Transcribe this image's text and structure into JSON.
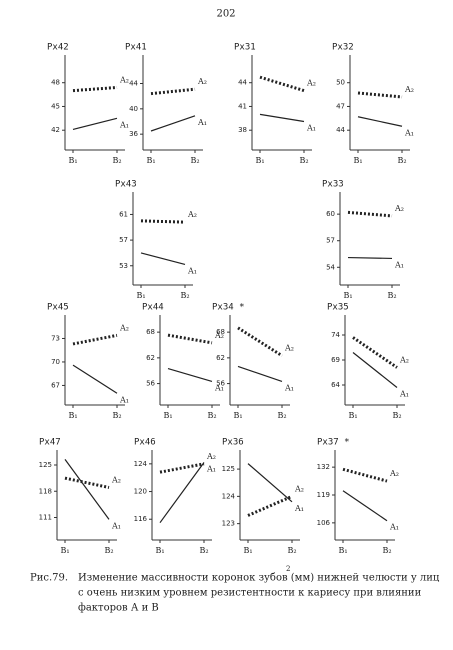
{
  "page_number": "202",
  "caption": {
    "label": "Рис.79.",
    "mark": "2",
    "lines": [
      "Изменение массивности коронок зубов (мм) нижней челюсти  у лиц",
      "с очень низким уровнем резистентности к кариесу при влиянии",
      "факторов А и В"
    ]
  },
  "chart_data": [
    {
      "type": "line",
      "title": "Px42",
      "categories": [
        "B₁",
        "B₂"
      ],
      "ylim": [
        39.5,
        51.5
      ],
      "yticks": [
        42,
        45,
        48
      ],
      "series": [
        {
          "name": "A₂",
          "color": "#222",
          "style": "dotted",
          "values": [
            47.0,
            47.4
          ]
        },
        {
          "name": "A₁",
          "color": "#222",
          "style": "solid",
          "values": [
            42.1,
            43.5
          ]
        }
      ]
    },
    {
      "type": "line",
      "title": "Px41",
      "categories": [
        "B₁",
        "B₂"
      ],
      "ylim": [
        33.5,
        48.5
      ],
      "yticks": [
        36,
        40,
        44
      ],
      "series": [
        {
          "name": "A₂",
          "color": "#222",
          "style": "dotted",
          "values": [
            42.4,
            43.1
          ]
        },
        {
          "name": "A₁",
          "color": "#222",
          "style": "solid",
          "values": [
            36.5,
            38.9
          ]
        }
      ]
    },
    {
      "type": "line",
      "title": "Px31",
      "categories": [
        "B₁",
        "B₂"
      ],
      "ylim": [
        35.5,
        47.5
      ],
      "yticks": [
        38,
        41,
        44
      ],
      "series": [
        {
          "name": "A₂",
          "color": "#222",
          "style": "dotted",
          "values": [
            44.7,
            43.0
          ]
        },
        {
          "name": "A₁",
          "color": "#222",
          "style": "solid",
          "values": [
            40.0,
            39.1
          ]
        }
      ]
    },
    {
      "type": "line",
      "title": "Px32",
      "categories": [
        "B₁",
        "B₂"
      ],
      "ylim": [
        41.5,
        53.5
      ],
      "yticks": [
        44,
        47,
        50
      ],
      "series": [
        {
          "name": "A₂",
          "color": "#222",
          "style": "dotted",
          "values": [
            48.7,
            48.2
          ]
        },
        {
          "name": "A₁",
          "color": "#222",
          "style": "solid",
          "values": [
            45.7,
            44.5
          ]
        }
      ]
    },
    {
      "type": "line",
      "title": "Px43",
      "categories": [
        "B₁",
        "B₂"
      ],
      "ylim": [
        50,
        64.5
      ],
      "yticks": [
        53,
        57,
        61
      ],
      "series": [
        {
          "name": "A₂",
          "color": "#222",
          "style": "dotted",
          "values": [
            60.0,
            59.8
          ]
        },
        {
          "name": "A₁",
          "color": "#222",
          "style": "solid",
          "values": [
            55.0,
            53.2
          ]
        }
      ]
    },
    {
      "type": "line",
      "title": "Px33",
      "categories": [
        "B₁",
        "B₂"
      ],
      "ylim": [
        52,
        62.5
      ],
      "yticks": [
        54,
        57,
        60
      ],
      "series": [
        {
          "name": "A₂",
          "color": "#222",
          "style": "dotted",
          "values": [
            60.2,
            59.8
          ]
        },
        {
          "name": "A₁",
          "color": "#222",
          "style": "solid",
          "values": [
            55.1,
            55.0
          ]
        }
      ]
    },
    {
      "type": "line",
      "title": "Px45",
      "categories": [
        "B₁",
        "B₂"
      ],
      "ylim": [
        64.5,
        76
      ],
      "yticks": [
        67,
        70,
        73
      ],
      "series": [
        {
          "name": "A₂",
          "color": "#222",
          "style": "dotted",
          "values": [
            72.3,
            73.4
          ]
        },
        {
          "name": "A₁",
          "color": "#222",
          "style": "solid",
          "values": [
            69.6,
            66.0
          ]
        }
      ]
    },
    {
      "type": "line",
      "title": "Px44",
      "categories": [
        "B₁",
        "B₂"
      ],
      "ylim": [
        51,
        72
      ],
      "yticks": [
        56,
        62,
        68
      ],
      "series": [
        {
          "name": "A₂",
          "color": "#222",
          "style": "dotted",
          "values": [
            67.3,
            65.5
          ]
        },
        {
          "name": "A₁",
          "color": "#222",
          "style": "solid",
          "values": [
            59.5,
            56.5
          ]
        }
      ]
    },
    {
      "type": "line",
      "title": "Px34 *",
      "categories": [
        "B₁",
        "B₂"
      ],
      "ylim": [
        51,
        72
      ],
      "yticks": [
        56,
        62,
        68
      ],
      "series": [
        {
          "name": "A₂",
          "color": "#222",
          "style": "dotted",
          "values": [
            69.0,
            62.5
          ]
        },
        {
          "name": "A₁",
          "color": "#222",
          "style": "solid",
          "values": [
            60.0,
            56.5
          ]
        }
      ]
    },
    {
      "type": "line",
      "title": "Px35",
      "categories": [
        "B₁",
        "B₂"
      ],
      "ylim": [
        60,
        78
      ],
      "yticks": [
        64,
        69,
        74
      ],
      "series": [
        {
          "name": "A₂",
          "color": "#222",
          "style": "dotted",
          "values": [
            73.5,
            67.5
          ]
        },
        {
          "name": "A₁",
          "color": "#222",
          "style": "solid",
          "values": [
            70.5,
            63.5
          ]
        }
      ]
    },
    {
      "type": "line",
      "title": "Px47",
      "categories": [
        "B₁",
        "B₂"
      ],
      "ylim": [
        105,
        129
      ],
      "yticks": [
        111,
        118,
        125
      ],
      "series": [
        {
          "name": "A₂",
          "color": "#222",
          "style": "dotted",
          "values": [
            121.5,
            119.0
          ]
        },
        {
          "name": "A₁",
          "color": "#222",
          "style": "solid",
          "values": [
            126.5,
            110.5
          ]
        }
      ]
    },
    {
      "type": "line",
      "title": "Px46",
      "categories": [
        "B₁",
        "B₂"
      ],
      "ylim": [
        113,
        126
      ],
      "yticks": [
        116,
        120,
        124
      ],
      "series": [
        {
          "name": "A₂",
          "color": "#222",
          "style": "dotted",
          "values": [
            122.8,
            124.0
          ]
        },
        {
          "name": "A₁",
          "color": "#222",
          "style": "solid",
          "values": [
            115.5,
            124.2
          ]
        }
      ]
    },
    {
      "type": "line",
      "title": "Px36",
      "categories": [
        "B₁",
        "B₂"
      ],
      "ylim": [
        122.4,
        125.7
      ],
      "yticks": [
        123,
        124,
        125
      ],
      "series": [
        {
          "name": "A₂",
          "color": "#222",
          "style": "dotted",
          "values": [
            123.3,
            124.0
          ]
        },
        {
          "name": "A₁",
          "color": "#222",
          "style": "solid",
          "values": [
            125.2,
            123.8
          ]
        }
      ]
    },
    {
      "type": "line",
      "title": "Px37 *",
      "categories": [
        "B₁",
        "B₂"
      ],
      "ylim": [
        98,
        140
      ],
      "yticks": [
        106,
        119,
        132
      ],
      "series": [
        {
          "name": "A₂",
          "color": "#222",
          "style": "dotted",
          "values": [
            131,
            125.5
          ]
        },
        {
          "name": "A₁",
          "color": "#222",
          "style": "solid",
          "values": [
            121,
            107
          ]
        }
      ]
    }
  ]
}
